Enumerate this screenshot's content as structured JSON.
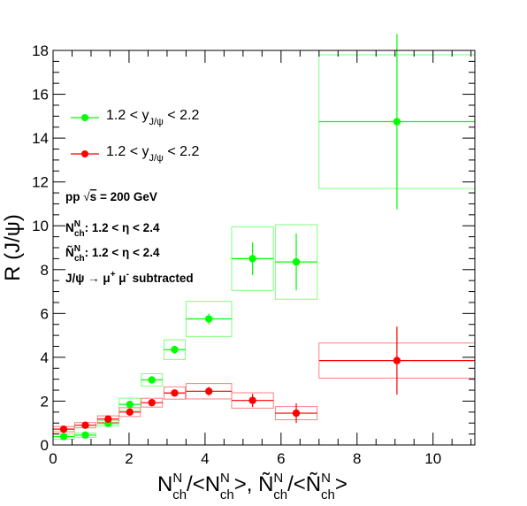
{
  "chart_data": {
    "type": "scatter",
    "xlabel": "N_ch^N/<N_ch^N>, Ñ_ch^N/<Ñ_ch^N>",
    "ylabel": "R (J/ψ)",
    "xlim": [
      0,
      11.1
    ],
    "ylim": [
      0,
      18
    ],
    "xticks": [
      "0",
      "2",
      "4",
      "6",
      "8",
      "10"
    ],
    "yticks": [
      "0",
      "2",
      "4",
      "6",
      "8",
      "10",
      "12",
      "14",
      "16",
      "18"
    ],
    "legend_placement": "top-left",
    "grid": false,
    "series": [
      {
        "name": "1.2 < y_J/ψ < 2.2",
        "legend_main": "1.2 < y",
        "legend_sub": "J/ψ",
        "legend_tail": " < 2.2",
        "color": "#00ff00",
        "box_color": "#7fff7f",
        "points": [
          {
            "x": 0.28,
            "y": 0.38,
            "xerr": 0.28,
            "yerr": 0.12,
            "syx": 0.28,
            "syy": 0.12
          },
          {
            "x": 0.85,
            "y": 0.45,
            "xerr": 0.28,
            "yerr": 0.1,
            "syx": 0.28,
            "syy": 0.1
          },
          {
            "x": 1.45,
            "y": 0.98,
            "xerr": 0.28,
            "yerr": 0.12,
            "syx": 0.28,
            "syy": 0.12
          },
          {
            "x": 2.02,
            "y": 1.85,
            "xerr": 0.28,
            "yerr": 0.15,
            "syx": 0.28,
            "syy": 0.28
          },
          {
            "x": 2.6,
            "y": 2.97,
            "xerr": 0.28,
            "yerr": 0.15,
            "syx": 0.28,
            "syy": 0.28
          },
          {
            "x": 3.2,
            "y": 4.35,
            "xerr": 0.28,
            "yerr": 0.18,
            "syx": 0.28,
            "syy": 0.45
          },
          {
            "x": 4.1,
            "y": 5.75,
            "xerr": 0.6,
            "yerr": 0.25,
            "syx": 0.6,
            "syy": 0.8
          },
          {
            "x": 5.25,
            "y": 8.5,
            "xerr": 0.55,
            "yerr": 0.75,
            "syx": 0.55,
            "syy": 1.45
          },
          {
            "x": 6.4,
            "y": 8.35,
            "xerr": 0.55,
            "yerr": 1.3,
            "syx": 0.55,
            "syy": 1.7
          },
          {
            "x": 9.05,
            "y": 14.75,
            "xerr": 2.05,
            "yerr": 4.0,
            "syx": 2.05,
            "syy": 3.05
          }
        ]
      },
      {
        "name": "1.2 < y_J/ψ < 2.2",
        "legend_main": "1.2 < y",
        "legend_sub": "J/ψ",
        "legend_tail": " < 2.2",
        "color": "#ff0000",
        "box_color": "#ff8080",
        "points": [
          {
            "x": 0.28,
            "y": 0.72,
            "xerr": 0.28,
            "yerr": 0.1,
            "syx": 0.28,
            "syy": 0.12
          },
          {
            "x": 0.85,
            "y": 0.9,
            "xerr": 0.28,
            "yerr": 0.1,
            "syx": 0.28,
            "syy": 0.12
          },
          {
            "x": 1.45,
            "y": 1.18,
            "xerr": 0.28,
            "yerr": 0.12,
            "syx": 0.28,
            "syy": 0.15
          },
          {
            "x": 2.02,
            "y": 1.5,
            "xerr": 0.28,
            "yerr": 0.12,
            "syx": 0.28,
            "syy": 0.2
          },
          {
            "x": 2.6,
            "y": 1.93,
            "xerr": 0.28,
            "yerr": 0.12,
            "syx": 0.28,
            "syy": 0.2
          },
          {
            "x": 3.2,
            "y": 2.37,
            "xerr": 0.28,
            "yerr": 0.15,
            "syx": 0.28,
            "syy": 0.28
          },
          {
            "x": 4.1,
            "y": 2.45,
            "xerr": 0.6,
            "yerr": 0.2,
            "syx": 0.6,
            "syy": 0.35
          },
          {
            "x": 5.25,
            "y": 2.03,
            "xerr": 0.55,
            "yerr": 0.3,
            "syx": 0.55,
            "syy": 0.35
          },
          {
            "x": 6.4,
            "y": 1.45,
            "xerr": 0.55,
            "yerr": 0.45,
            "syx": 0.55,
            "syy": 0.3
          },
          {
            "x": 9.05,
            "y": 3.85,
            "xerr": 2.05,
            "yerr": 1.55,
            "syx": 2.05,
            "syy": 0.8
          }
        ]
      }
    ],
    "annotations": {
      "line1": "pp  √s = 200 GeV",
      "line1_prefix": "pp  ",
      "line1_sqrt": "√",
      "line1_s": "s",
      "line1_rest": " = 200 GeV",
      "line2_main": "N",
      "line2_sub": "ch",
      "line2_sup": "N",
      "line2_rest": ": 1.2 < η < 2.4",
      "line3_main": "Ñ",
      "line3_sub": "ch",
      "line3_sup": "N",
      "line3_rest": ": 1.2 < η < 2.4",
      "line4_main": "J/ψ → μ",
      "line4_sup1": "+",
      "line4_mid": " μ",
      "line4_sup2": "-",
      "line4_rest": " subtracted"
    },
    "xtitle_parts": {
      "a_main": "N",
      "a_sup": "N",
      "a_sub": "ch",
      "b_main": "/<N",
      "b_sup": "N",
      "b_sub": "ch",
      "c_main": ">, Ñ",
      "c_sup": "N",
      "c_sub": "ch",
      "d_main": "/<Ñ",
      "d_sup": "N",
      "d_sub": "ch",
      "e_main": ">"
    }
  }
}
